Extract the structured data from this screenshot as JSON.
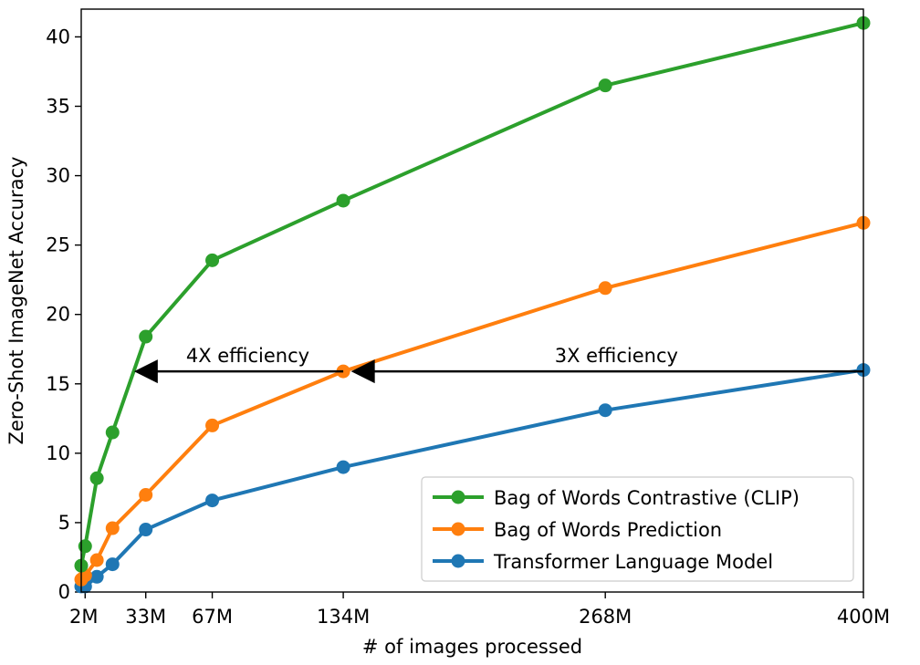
{
  "chart_data": {
    "type": "line",
    "title": "",
    "xlabel": "# of images processed",
    "ylabel": "Zero-Shot ImageNet Accuracy",
    "xlim": [
      0,
      400
    ],
    "ylim": [
      0,
      42
    ],
    "x_unit": "M",
    "x_ticks": [
      {
        "value": 2,
        "label": "2M"
      },
      {
        "value": 33,
        "label": "33M"
      },
      {
        "value": 67,
        "label": "67M"
      },
      {
        "value": 134,
        "label": "134M"
      },
      {
        "value": 268,
        "label": "268M"
      },
      {
        "value": 400,
        "label": "400M"
      }
    ],
    "y_ticks": [
      0,
      5,
      10,
      15,
      20,
      25,
      30,
      35,
      40
    ],
    "grid": false,
    "legend_position": "bottom-right",
    "series": [
      {
        "name": "Bag of Words Contrastive (CLIP)",
        "color": "#2ca02c",
        "x": [
          0,
          2,
          8,
          16,
          33,
          67,
          134,
          268,
          400
        ],
        "y": [
          1.9,
          3.3,
          8.2,
          11.5,
          18.4,
          23.9,
          28.2,
          36.5,
          41.0
        ]
      },
      {
        "name": "Bag of Words Prediction",
        "color": "#ff7f0e",
        "x": [
          0,
          2,
          8,
          16,
          33,
          67,
          134,
          268,
          400
        ],
        "y": [
          0.9,
          1.2,
          2.3,
          4.6,
          7.0,
          12.0,
          15.9,
          21.9,
          26.6
        ]
      },
      {
        "name": "Transformer Language Model",
        "color": "#1f77b4",
        "x": [
          0,
          2,
          8,
          16,
          33,
          67,
          134,
          268,
          400
        ],
        "y": [
          0.4,
          0.4,
          1.1,
          2.0,
          4.5,
          6.6,
          9.0,
          13.1,
          16.0
        ]
      }
    ],
    "annotations": [
      {
        "text": "4X efficiency",
        "from": [
          134,
          15.9
        ],
        "to": [
          27,
          15.9
        ]
      },
      {
        "text": "3X efficiency",
        "from": [
          400,
          15.9
        ],
        "to": [
          138,
          15.9
        ]
      }
    ]
  }
}
